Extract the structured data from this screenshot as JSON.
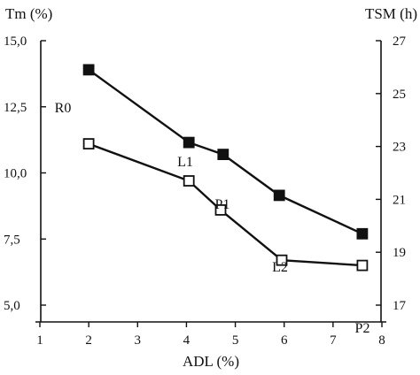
{
  "chart_data": {
    "type": "line",
    "x_label": "ADL (%)",
    "y_left_label": "Tm (%)",
    "y_right_label": "TSM (h)",
    "x_range": [
      1,
      8
    ],
    "y_left_range": [
      5.0,
      15.0
    ],
    "y_right_range": [
      17,
      27
    ],
    "x_ticks": [
      "1",
      "2",
      "3",
      "4",
      "5",
      "6",
      "7",
      "8"
    ],
    "y_left_ticks": [
      "5,0",
      "7,5",
      "10,0",
      "12,5",
      "15,0"
    ],
    "y_right_ticks": [
      "17",
      "19",
      "21",
      "23",
      "25",
      "27"
    ],
    "grid": false,
    "legend": "none",
    "series": [
      {
        "axis": "left",
        "marker": "filled-square",
        "color": "#111111",
        "points": [
          {
            "x": 2.0,
            "y": 13.9
          },
          {
            "x": 4.05,
            "y": 11.15
          },
          {
            "x": 4.75,
            "y": 10.7
          },
          {
            "x": 5.9,
            "y": 9.15
          },
          {
            "x": 7.6,
            "y": 7.7
          }
        ]
      },
      {
        "axis": "right",
        "marker": "open-square",
        "color": "#111111",
        "points": [
          {
            "x": 2.0,
            "y": 23.1
          },
          {
            "x": 4.05,
            "y": 21.7
          },
          {
            "x": 4.7,
            "y": 20.6
          },
          {
            "x": 5.95,
            "y": 18.7
          },
          {
            "x": 7.6,
            "y": 18.5
          }
        ]
      }
    ],
    "point_labels": [
      "R0",
      "L1",
      "P1",
      "L2",
      "P2"
    ]
  }
}
